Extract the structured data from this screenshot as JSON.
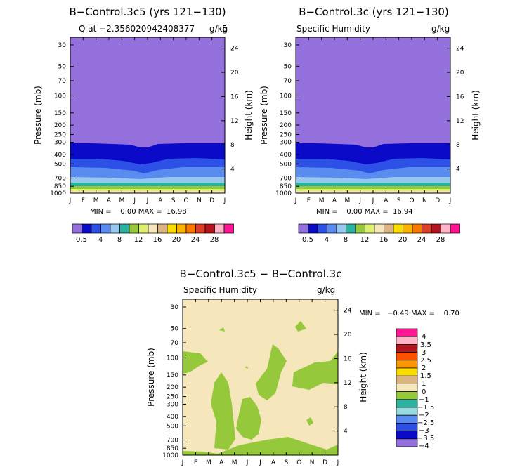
{
  "palette": {
    "label_bar": [
      "#9370db",
      "#0a0ac8",
      "#2d50e6",
      "#5a8cf0",
      "#96c8f0",
      "#28b4a0",
      "#96c83c",
      "#dcf06e",
      "#f5e6bc",
      "#dcb482",
      "#fadc00",
      "#fab400",
      "#fa7800",
      "#dc3c28",
      "#b4141e",
      "#ffb4c8",
      "#ff1493"
    ],
    "diff_bar": [
      "#ff1493",
      "#ffb4c8",
      "#b4141e",
      "#fa5000",
      "#fa9600",
      "#fadc00",
      "#dcb482",
      "#f5e6bc",
      "#96c83c",
      "#28b4a0",
      "#96dce0",
      "#5a8cf0",
      "#2d50e6",
      "#0a0ac8",
      "#9370db"
    ],
    "diff_bg": "#f5e6bc",
    "diff_fg": "#96c83c"
  },
  "chart_data": [
    {
      "type": "contour",
      "title": "B−Control.3c5 (yrs 121−130)",
      "subtitle_left": "Q at −2.356020942408377",
      "subtitle_right": "g/kg",
      "subtitle_extra": "5",
      "xlabel": "",
      "ylabel": "Pressure (mb)",
      "ylabel_right": "Height (km)",
      "x_ticks": [
        "J",
        "F",
        "M",
        "A",
        "M",
        "J",
        "J",
        "A",
        "S",
        "O",
        "N",
        "D",
        "J"
      ],
      "y_ticks": [
        "30",
        "50",
        "70",
        "100",
        "150",
        "200",
        "250",
        "300",
        "400",
        "500",
        "700",
        "850",
        "1000"
      ],
      "right_ticks": [
        "24",
        "20",
        "16",
        "12",
        "8",
        "4"
      ],
      "stats": "MIN =    0.00 MAX =  16.98",
      "colorbar_labels": [
        "0.5",
        "4",
        "8",
        "12",
        "16",
        "20",
        "24",
        "28"
      ]
    },
    {
      "type": "contour",
      "title": "B−Control.3c (yrs 121−130)",
      "subtitle_left": "Specific Humidity",
      "subtitle_right": "g/kg",
      "xlabel": "",
      "ylabel": "Pressure (mb)",
      "ylabel_right": "Height (km)",
      "x_ticks": [
        "J",
        "F",
        "M",
        "A",
        "M",
        "J",
        "J",
        "A",
        "S",
        "O",
        "N",
        "D",
        "J"
      ],
      "y_ticks": [
        "30",
        "50",
        "70",
        "100",
        "150",
        "200",
        "250",
        "300",
        "400",
        "500",
        "700",
        "850",
        "1000"
      ],
      "right_ticks": [
        "24",
        "20",
        "16",
        "12",
        "8",
        "4"
      ],
      "stats": "MIN =    0.00 MAX =  16.94",
      "colorbar_labels": [
        "0.5",
        "4",
        "8",
        "12",
        "16",
        "20",
        "24",
        "28"
      ]
    },
    {
      "type": "contour",
      "title": "B−Control.3c5 − B−Control.3c",
      "subtitle_left": "Specific Humidity",
      "subtitle_right": "g/kg",
      "xlabel": "",
      "ylabel": "Pressure (mb)",
      "ylabel_right": "Height (km)",
      "x_ticks": [
        "J",
        "F",
        "M",
        "A",
        "M",
        "J",
        "J",
        "A",
        "S",
        "O",
        "N",
        "D",
        "J"
      ],
      "y_ticks": [
        "30",
        "50",
        "70",
        "100",
        "150",
        "200",
        "250",
        "300",
        "400",
        "500",
        "700",
        "850",
        "1000"
      ],
      "right_ticks": [
        "24",
        "20",
        "16",
        "12",
        "8",
        "4"
      ],
      "stats": "MIN =   −0.49 MAX =    0.70",
      "colorbar_labels": [
        "4",
        "3.5",
        "3",
        "2.5",
        "2",
        "1.5",
        "1",
        "0",
        "−1",
        "−1.5",
        "−2",
        "−2.5",
        "−3",
        "−3.5",
        "−4"
      ]
    }
  ]
}
